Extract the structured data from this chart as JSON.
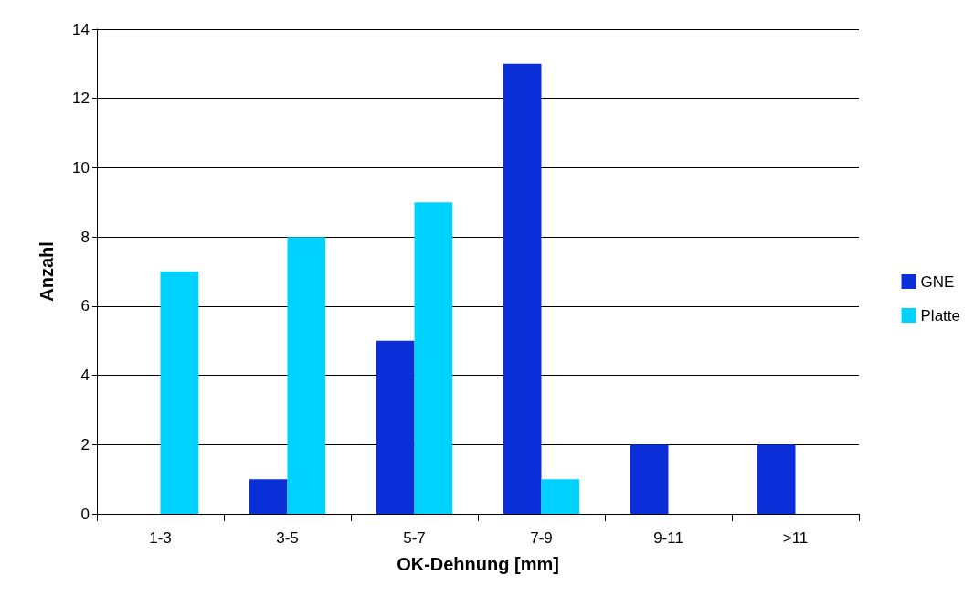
{
  "chart_data": {
    "type": "bar",
    "xlabel": "OK-Dehnung [mm]",
    "ylabel": "Anzahl",
    "categories": [
      "1-3",
      "3-5",
      "5-7",
      "7-9",
      "9-11",
      ">11"
    ],
    "series": [
      {
        "name": "GNE",
        "color": "#0a2ed8",
        "values": [
          0,
          1,
          5,
          13,
          2,
          2
        ]
      },
      {
        "name": "Platte",
        "color": "#00d2ff",
        "values": [
          7,
          8,
          9,
          1,
          0,
          0
        ]
      }
    ],
    "ylim": [
      0,
      14
    ],
    "yticks": [
      0,
      2,
      4,
      6,
      8,
      10,
      12,
      14
    ],
    "grid": "y",
    "legend": "right"
  }
}
